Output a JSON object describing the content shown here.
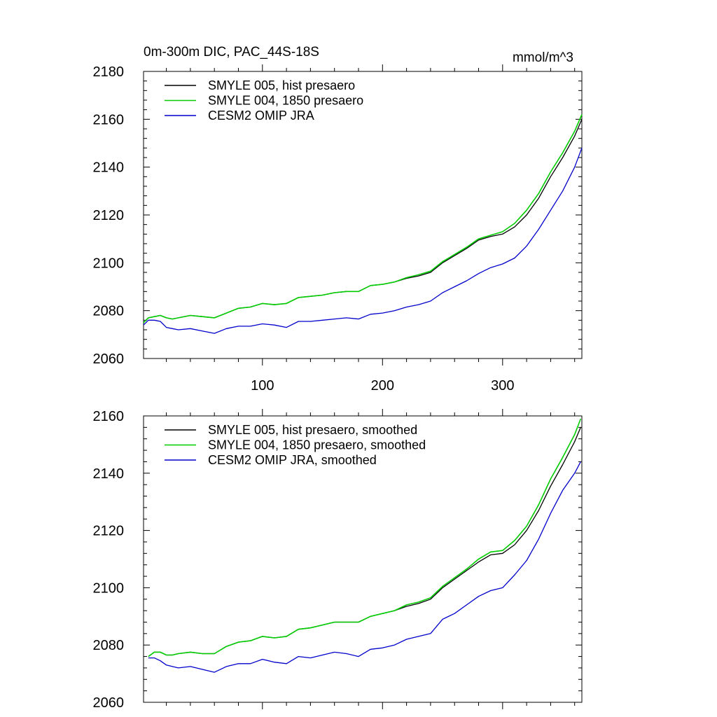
{
  "chart_data": [
    {
      "type": "line",
      "title": "0m-300m DIC, PAC_44S-18S",
      "units": "mmol/m^3",
      "xlim": [
        1,
        366
      ],
      "ylim": [
        2060,
        2180
      ],
      "xticks": [
        100,
        200,
        300
      ],
      "yticks": [
        2060,
        2080,
        2100,
        2120,
        2140,
        2160,
        2180
      ],
      "legend_position": "top-left",
      "grid": false,
      "series": [
        {
          "name": "SMYLE 005, hist presaero",
          "color": "#000000",
          "x": [
            1,
            5,
            10,
            15,
            20,
            25,
            30,
            40,
            50,
            60,
            70,
            80,
            90,
            100,
            110,
            120,
            130,
            140,
            150,
            160,
            170,
            180,
            190,
            200,
            210,
            220,
            230,
            240,
            250,
            260,
            270,
            280,
            290,
            300,
            310,
            320,
            330,
            340,
            350,
            360,
            366
          ],
          "values": [
            2075,
            2077,
            2077.5,
            2078,
            2077,
            2076.5,
            2077,
            2078,
            2077.5,
            2077,
            2079,
            2081,
            2081.5,
            2083,
            2082.5,
            2083,
            2085.5,
            2086,
            2086.5,
            2087.5,
            2088,
            2088,
            2090.5,
            2091,
            2092,
            2093.5,
            2094.5,
            2096,
            2100,
            2103,
            2106,
            2109.5,
            2111,
            2112,
            2115,
            2120,
            2127,
            2136,
            2144,
            2153,
            2160
          ]
        },
        {
          "name": "SMYLE 004, 1850 presaero",
          "color": "#00cc00",
          "x": [
            1,
            5,
            10,
            15,
            20,
            25,
            30,
            40,
            50,
            60,
            70,
            80,
            90,
            100,
            110,
            120,
            130,
            140,
            150,
            160,
            170,
            180,
            190,
            200,
            210,
            220,
            230,
            240,
            250,
            260,
            270,
            280,
            290,
            300,
            310,
            320,
            330,
            340,
            350,
            360,
            366
          ],
          "values": [
            2075,
            2077,
            2077.5,
            2078,
            2077,
            2076.5,
            2077,
            2078,
            2077.5,
            2077,
            2079,
            2081,
            2081.5,
            2083,
            2082.5,
            2083,
            2085.5,
            2086,
            2086.5,
            2087.5,
            2088,
            2088,
            2090.5,
            2091,
            2092,
            2093.8,
            2095,
            2096.5,
            2100.5,
            2103.5,
            2106.5,
            2110,
            2111.5,
            2113,
            2116.5,
            2122,
            2129,
            2138,
            2146,
            2155,
            2162
          ]
        },
        {
          "name": "CESM2 OMIP JRA",
          "color": "#0000cc",
          "x": [
            1,
            5,
            10,
            15,
            20,
            25,
            30,
            40,
            50,
            60,
            70,
            80,
            90,
            100,
            110,
            120,
            130,
            140,
            150,
            160,
            170,
            180,
            190,
            200,
            210,
            220,
            230,
            240,
            250,
            260,
            270,
            280,
            290,
            300,
            310,
            320,
            330,
            340,
            350,
            360,
            366
          ],
          "values": [
            2074,
            2076,
            2076,
            2075.5,
            2073,
            2072.5,
            2072,
            2072.5,
            2071.5,
            2070.5,
            2072.5,
            2073.5,
            2073.5,
            2074.5,
            2074,
            2073,
            2075.5,
            2075.5,
            2076,
            2076.5,
            2077,
            2076.5,
            2078.5,
            2079,
            2080,
            2081.5,
            2082.5,
            2084,
            2087.5,
            2090,
            2092.5,
            2095.5,
            2098,
            2099.5,
            2102,
            2107,
            2114,
            2122,
            2130,
            2140,
            2148
          ]
        }
      ]
    },
    {
      "type": "line",
      "xlim": [
        1,
        366
      ],
      "ylim": [
        2060,
        2160
      ],
      "xticks": [
        100,
        200,
        300
      ],
      "yticks": [
        2060,
        2080,
        2100,
        2120,
        2140,
        2160
      ],
      "legend_position": "top-left",
      "grid": false,
      "series": [
        {
          "name": "SMYLE 005, hist presaero, smoothed",
          "color": "#000000",
          "x": [
            5,
            10,
            15,
            20,
            25,
            30,
            40,
            50,
            60,
            70,
            80,
            90,
            100,
            110,
            120,
            130,
            140,
            150,
            160,
            170,
            180,
            190,
            200,
            210,
            220,
            230,
            240,
            250,
            260,
            270,
            280,
            290,
            300,
            310,
            320,
            330,
            340,
            350,
            360,
            365
          ],
          "values": [
            2076,
            2077.5,
            2077.5,
            2076.5,
            2076.5,
            2077,
            2077.5,
            2077,
            2077,
            2079.5,
            2081,
            2081.5,
            2083,
            2082.5,
            2083,
            2085.5,
            2086,
            2087,
            2088,
            2088,
            2088,
            2090,
            2091,
            2092,
            2093.5,
            2094.5,
            2096,
            2100,
            2103,
            2106,
            2109,
            2111.5,
            2112,
            2115,
            2120,
            2127,
            2135.5,
            2143,
            2151,
            2156
          ]
        },
        {
          "name": "SMYLE 004, 1850 presaero, smoothed",
          "color": "#00cc00",
          "x": [
            5,
            10,
            15,
            20,
            25,
            30,
            40,
            50,
            60,
            70,
            80,
            90,
            100,
            110,
            120,
            130,
            140,
            150,
            160,
            170,
            180,
            190,
            200,
            210,
            220,
            230,
            240,
            250,
            260,
            270,
            280,
            290,
            300,
            310,
            320,
            330,
            340,
            350,
            360,
            365
          ],
          "values": [
            2076,
            2077.5,
            2077.5,
            2076.5,
            2076.5,
            2077,
            2077.5,
            2077,
            2077,
            2079.5,
            2081,
            2081.5,
            2083,
            2082.5,
            2083,
            2085.5,
            2086,
            2087,
            2088,
            2088,
            2088,
            2090,
            2091,
            2092,
            2094,
            2095,
            2096.5,
            2100.5,
            2103.5,
            2106.5,
            2110,
            2112.5,
            2113,
            2116.5,
            2121.5,
            2129,
            2138,
            2145.5,
            2153.5,
            2159
          ]
        },
        {
          "name": "CESM2 OMIP JRA, smoothed",
          "color": "#0000cc",
          "x": [
            5,
            10,
            15,
            20,
            25,
            30,
            40,
            50,
            60,
            70,
            80,
            90,
            100,
            110,
            120,
            130,
            140,
            150,
            160,
            170,
            180,
            190,
            200,
            210,
            220,
            230,
            240,
            250,
            260,
            270,
            280,
            290,
            300,
            310,
            320,
            330,
            340,
            350,
            360,
            365
          ],
          "values": [
            2075.5,
            2075.5,
            2074.5,
            2073,
            2072.5,
            2072,
            2072.5,
            2071.5,
            2070.5,
            2072.5,
            2073.5,
            2073.5,
            2075,
            2074,
            2073.5,
            2076,
            2075.5,
            2076.5,
            2077.5,
            2077,
            2076,
            2078.5,
            2079,
            2080,
            2082,
            2083,
            2084,
            2089,
            2091,
            2094,
            2097,
            2099,
            2100,
            2104.5,
            2109.5,
            2117,
            2126,
            2134,
            2140,
            2144
          ]
        }
      ]
    }
  ]
}
